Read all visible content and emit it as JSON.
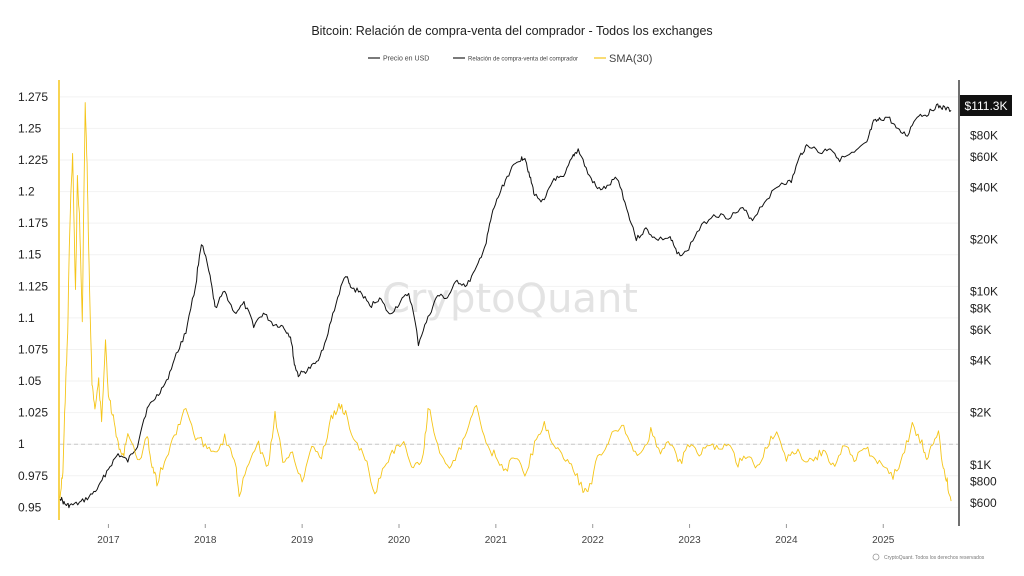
{
  "chart_data": {
    "type": "line",
    "title": "Bitcoin: Relación de compra-venta del comprador - Todos los exchanges",
    "legend": {
      "placement": "top-center",
      "items": [
        {
          "label": "Precio en USD",
          "color": "#222222"
        },
        {
          "label": "Relación de compra-venta del comprador",
          "color": "#222222"
        },
        {
          "label": "SMA(30)",
          "color": "#f5c518"
        }
      ]
    },
    "x_axis": {
      "ticks": [
        "2017",
        "2018",
        "2019",
        "2020",
        "2021",
        "2022",
        "2023",
        "2024",
        "2025"
      ],
      "range": [
        2016.5,
        2025.72
      ]
    },
    "y_left": {
      "ticks": [
        "1.275",
        "1.25",
        "1.225",
        "1.2",
        "1.175",
        "1.15",
        "1.125",
        "1.1",
        "1.075",
        "1.05",
        "1.025",
        "1",
        "0.975",
        "0.95"
      ],
      "range": [
        0.94,
        1.282
      ],
      "reference_line": 1
    },
    "y_right": {
      "scale": "log",
      "ticks": [
        {
          "label": "$600",
          "value": 600
        },
        {
          "label": "$800",
          "value": 800
        },
        {
          "label": "$1K",
          "value": 1000
        },
        {
          "label": "$2K",
          "value": 2000
        },
        {
          "label": "$4K",
          "value": 4000
        },
        {
          "label": "$6K",
          "value": 6000
        },
        {
          "label": "$8K",
          "value": 8000
        },
        {
          "label": "$10K",
          "value": 10000
        },
        {
          "label": "$20K",
          "value": 20000
        },
        {
          "label": "$40K",
          "value": 40000
        },
        {
          "label": "$60K",
          "value": 60000
        },
        {
          "label": "$80K",
          "value": 80000
        }
      ],
      "range": [
        480,
        150000
      ]
    },
    "current_price_label": "$111.3K",
    "series": [
      {
        "name": "Precio en USD",
        "color": "#111111",
        "axis": "right",
        "points": [
          [
            2016.5,
            650
          ],
          [
            2016.55,
            590
          ],
          [
            2016.6,
            580
          ],
          [
            2016.7,
            600
          ],
          [
            2016.8,
            650
          ],
          [
            2016.9,
            740
          ],
          [
            2017.0,
            950
          ],
          [
            2017.1,
            1150
          ],
          [
            2017.2,
            1050
          ],
          [
            2017.3,
            1300
          ],
          [
            2017.4,
            2100
          ],
          [
            2017.5,
            2500
          ],
          [
            2017.6,
            3000
          ],
          [
            2017.7,
            4300
          ],
          [
            2017.8,
            5800
          ],
          [
            2017.9,
            10500
          ],
          [
            2017.96,
            19000
          ],
          [
            2018.05,
            12000
          ],
          [
            2018.1,
            8000
          ],
          [
            2018.2,
            10000
          ],
          [
            2018.3,
            7500
          ],
          [
            2018.4,
            8500
          ],
          [
            2018.5,
            6400
          ],
          [
            2018.6,
            7500
          ],
          [
            2018.7,
            6500
          ],
          [
            2018.8,
            6300
          ],
          [
            2018.88,
            5500
          ],
          [
            2018.92,
            3800
          ],
          [
            2018.96,
            3300
          ],
          [
            2019.05,
            3500
          ],
          [
            2019.15,
            3900
          ],
          [
            2019.25,
            5200
          ],
          [
            2019.35,
            8500
          ],
          [
            2019.45,
            12500
          ],
          [
            2019.5,
            10500
          ],
          [
            2019.6,
            10000
          ],
          [
            2019.7,
            8200
          ],
          [
            2019.8,
            9200
          ],
          [
            2019.9,
            7300
          ],
          [
            2020.0,
            8500
          ],
          [
            2020.1,
            9800
          ],
          [
            2020.2,
            5000
          ],
          [
            2020.3,
            7000
          ],
          [
            2020.4,
            9500
          ],
          [
            2020.5,
            9200
          ],
          [
            2020.6,
            11500
          ],
          [
            2020.7,
            10800
          ],
          [
            2020.8,
            13500
          ],
          [
            2020.9,
            19000
          ],
          [
            2020.97,
            29000
          ],
          [
            2021.05,
            38000
          ],
          [
            2021.15,
            50000
          ],
          [
            2021.25,
            58000
          ],
          [
            2021.3,
            60000
          ],
          [
            2021.35,
            46000
          ],
          [
            2021.4,
            36000
          ],
          [
            2021.5,
            33000
          ],
          [
            2021.6,
            45000
          ],
          [
            2021.7,
            45000
          ],
          [
            2021.8,
            61000
          ],
          [
            2021.85,
            66000
          ],
          [
            2021.95,
            48000
          ],
          [
            2022.05,
            39000
          ],
          [
            2022.15,
            40000
          ],
          [
            2022.25,
            46000
          ],
          [
            2022.35,
            30000
          ],
          [
            2022.45,
            20000
          ],
          [
            2022.55,
            23000
          ],
          [
            2022.65,
            20000
          ],
          [
            2022.8,
            20500
          ],
          [
            2022.87,
            16500
          ],
          [
            2022.97,
            16800
          ],
          [
            2023.1,
            23000
          ],
          [
            2023.25,
            28000
          ],
          [
            2023.4,
            27000
          ],
          [
            2023.55,
            30000
          ],
          [
            2023.65,
            26000
          ],
          [
            2023.8,
            34500
          ],
          [
            2023.95,
            42500
          ],
          [
            2024.05,
            43000
          ],
          [
            2024.15,
            62000
          ],
          [
            2024.22,
            71000
          ],
          [
            2024.35,
            63000
          ],
          [
            2024.45,
            68000
          ],
          [
            2024.55,
            58000
          ],
          [
            2024.7,
            63000
          ],
          [
            2024.83,
            72000
          ],
          [
            2024.9,
            95000
          ],
          [
            2024.96,
            98000
          ],
          [
            2025.05,
            102000
          ],
          [
            2025.15,
            85000
          ],
          [
            2025.25,
            80000
          ],
          [
            2025.35,
            104000
          ],
          [
            2025.45,
            106000
          ],
          [
            2025.55,
            118000
          ],
          [
            2025.62,
            115000
          ],
          [
            2025.7,
            111300
          ]
        ]
      },
      {
        "name": "SMA(30)",
        "color": "#f5c518",
        "axis": "left",
        "points": [
          [
            2016.5,
            0.96
          ],
          [
            2016.53,
            0.98
          ],
          [
            2016.56,
            1.05
          ],
          [
            2016.58,
            1.09
          ],
          [
            2016.6,
            1.17
          ],
          [
            2016.63,
            1.23
          ],
          [
            2016.66,
            1.12
          ],
          [
            2016.68,
            1.21
          ],
          [
            2016.7,
            1.18
          ],
          [
            2016.73,
            1.1
          ],
          [
            2016.76,
            1.27
          ],
          [
            2016.78,
            1.22
          ],
          [
            2016.8,
            1.14
          ],
          [
            2016.83,
            1.05
          ],
          [
            2016.86,
            1.03
          ],
          [
            2016.9,
            1.05
          ],
          [
            2016.93,
            1.02
          ],
          [
            2016.97,
            1.08
          ],
          [
            2017.0,
            1.04
          ],
          [
            2017.05,
            1.02
          ],
          [
            2017.1,
            1.0
          ],
          [
            2017.15,
            0.99
          ],
          [
            2017.2,
            1.01
          ],
          [
            2017.3,
            0.985
          ],
          [
            2017.4,
            1.005
          ],
          [
            2017.45,
            0.985
          ],
          [
            2017.5,
            0.97
          ],
          [
            2017.6,
            0.99
          ],
          [
            2017.7,
            1.01
          ],
          [
            2017.8,
            1.03
          ],
          [
            2017.9,
            1.005
          ],
          [
            2018.0,
            1.0
          ],
          [
            2018.1,
            0.995
          ],
          [
            2018.2,
            1.005
          ],
          [
            2018.3,
            0.99
          ],
          [
            2018.35,
            0.96
          ],
          [
            2018.45,
            0.985
          ],
          [
            2018.55,
            1.0
          ],
          [
            2018.65,
            0.98
          ],
          [
            2018.72,
            1.025
          ],
          [
            2018.8,
            0.985
          ],
          [
            2018.9,
            0.995
          ],
          [
            2019.0,
            0.97
          ],
          [
            2019.1,
            1.0
          ],
          [
            2019.2,
            0.99
          ],
          [
            2019.3,
            1.02
          ],
          [
            2019.38,
            1.03
          ],
          [
            2019.45,
            1.025
          ],
          [
            2019.55,
            1.0
          ],
          [
            2019.65,
            0.99
          ],
          [
            2019.75,
            0.96
          ],
          [
            2019.85,
            0.985
          ],
          [
            2019.95,
            0.995
          ],
          [
            2020.05,
            1.0
          ],
          [
            2020.15,
            0.98
          ],
          [
            2020.25,
            0.99
          ],
          [
            2020.3,
            1.03
          ],
          [
            2020.4,
            1.0
          ],
          [
            2020.5,
            0.98
          ],
          [
            2020.6,
            0.99
          ],
          [
            2020.7,
            1.01
          ],
          [
            2020.8,
            1.03
          ],
          [
            2020.9,
            1.0
          ],
          [
            2021.0,
            0.99
          ],
          [
            2021.1,
            0.98
          ],
          [
            2021.2,
            0.99
          ],
          [
            2021.3,
            0.975
          ],
          [
            2021.4,
            1.0
          ],
          [
            2021.5,
            1.015
          ],
          [
            2021.6,
            1.0
          ],
          [
            2021.7,
            0.99
          ],
          [
            2021.8,
            0.98
          ],
          [
            2021.9,
            0.965
          ],
          [
            2021.95,
            0.96
          ],
          [
            2022.05,
            0.99
          ],
          [
            2022.15,
            1.0
          ],
          [
            2022.2,
            1.01
          ],
          [
            2022.3,
            1.015
          ],
          [
            2022.4,
            1.0
          ],
          [
            2022.5,
            0.99
          ],
          [
            2022.6,
            1.01
          ],
          [
            2022.7,
            0.995
          ],
          [
            2022.8,
            1.0
          ],
          [
            2022.9,
            0.985
          ],
          [
            2023.0,
            1.0
          ],
          [
            2023.1,
            0.99
          ],
          [
            2023.2,
            1.0
          ],
          [
            2023.3,
            0.995
          ],
          [
            2023.4,
            1.0
          ],
          [
            2023.5,
            0.985
          ],
          [
            2023.6,
            0.99
          ],
          [
            2023.7,
            0.98
          ],
          [
            2023.8,
            1.0
          ],
          [
            2023.9,
            1.01
          ],
          [
            2024.0,
            0.99
          ],
          [
            2024.1,
            0.995
          ],
          [
            2024.2,
            0.985
          ],
          [
            2024.3,
            0.99
          ],
          [
            2024.4,
            0.995
          ],
          [
            2024.5,
            0.98
          ],
          [
            2024.6,
            1.0
          ],
          [
            2024.7,
            0.985
          ],
          [
            2024.8,
            1.0
          ],
          [
            2024.9,
            0.99
          ],
          [
            2025.0,
            0.98
          ],
          [
            2025.1,
            0.975
          ],
          [
            2025.2,
            0.99
          ],
          [
            2025.3,
            1.015
          ],
          [
            2025.4,
            1.0
          ],
          [
            2025.45,
            0.99
          ],
          [
            2025.52,
            1.0
          ],
          [
            2025.57,
            1.01
          ],
          [
            2025.62,
            0.98
          ],
          [
            2025.66,
            0.97
          ],
          [
            2025.7,
            0.955
          ]
        ]
      }
    ],
    "grid": "horizontal"
  },
  "watermark": "CryptoQuant",
  "footer": "CryptoQuant. Todos los derechos reservados",
  "colors": {
    "price": "#111111",
    "sma": "#f5c518",
    "badge_bg": "#111111"
  }
}
